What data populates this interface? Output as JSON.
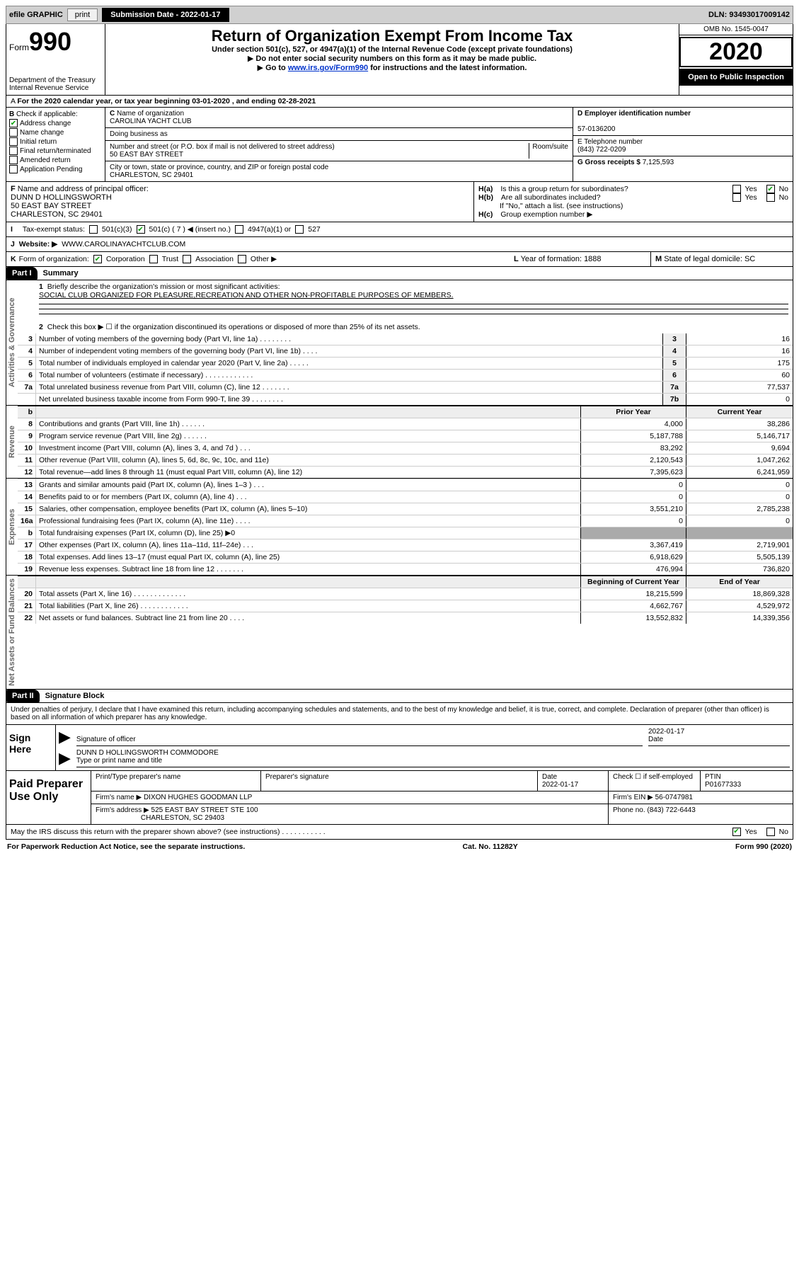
{
  "topbar": {
    "efile": "efile GRAPHIC",
    "print": "print",
    "submission": "Submission Date - 2022-01-17",
    "dln": "DLN: 93493017009142",
    "efile_bg": "#cfcfcf",
    "print_bg": "#f0f0f0",
    "sub_bg": "#000000",
    "sub_color": "#ffffff"
  },
  "header": {
    "form_word": "Form",
    "form_num": "990",
    "dept": "Department of the Treasury\nInternal Revenue Service",
    "title": "Return of Organization Exempt From Income Tax",
    "sub1": "Under section 501(c), 527, or 4947(a)(1) of the Internal Revenue Code (except private foundations)",
    "sub2": "Do not enter social security numbers on this form as it may be made public.",
    "sub3_pre": "Go to ",
    "sub3_link": "www.irs.gov/Form990",
    "sub3_post": " for instructions and the latest information.",
    "omb": "OMB No. 1545-0047",
    "year": "2020",
    "open": "Open to Public Inspection"
  },
  "lineA": "For the 2020 calendar year, or tax year beginning 03-01-2020     , and ending 02-28-2021",
  "checkB": {
    "label": "Check if applicable:",
    "address": "Address change",
    "name": "Name change",
    "initial": "Initial return",
    "final": "Final return/terminated",
    "amended": "Amended return",
    "pending": "Application Pending"
  },
  "org": {
    "c_label": "Name of organization",
    "c_name": "CAROLINA YACHT CLUB",
    "dba": "Doing business as",
    "addr_label": "Number and street (or P.O. box if mail is not delivered to street address)",
    "addr": "50 EAST BAY STREET",
    "room": "Room/suite",
    "city_label": "City or town, state or province, country, and ZIP or foreign postal code",
    "city": "CHARLESTON, SC  29401"
  },
  "right": {
    "d_label": "D Employer identification number",
    "d_val": "57-0136200",
    "e_label": "E Telephone number",
    "e_val": "(843) 722-0209",
    "g_label": "G Gross receipts $",
    "g_val": "7,125,593"
  },
  "officer": {
    "f_label": "Name and address of principal officer:",
    "name": "DUNN D HOLLINGSWORTH",
    "addr1": "50 EAST BAY STREET",
    "addr2": "CHARLESTON, SC  29401"
  },
  "h": {
    "ha": "Is this a group return for subordinates?",
    "hb": "Are all subordinates included?",
    "hb_note": "If \"No,\" attach a list. (see instructions)",
    "hc": "Group exemption number ▶",
    "yes": "Yes",
    "no": "No"
  },
  "status": {
    "label": "Tax-exempt status:",
    "s1": "501(c)(3)",
    "s2": "501(c) ( 7 ) ◀ (insert no.)",
    "s3": "4947(a)(1) or",
    "s4": "527"
  },
  "website": {
    "label": "Website: ▶",
    "val": "WWW.CAROLINAYACHTCLUB.COM"
  },
  "k": {
    "label": "Form of organization:",
    "o1": "Corporation",
    "o2": "Trust",
    "o3": "Association",
    "o4": "Other ▶"
  },
  "l": {
    "label": "Year of formation:",
    "val": "1888"
  },
  "m": {
    "label": "State of legal domicile:",
    "val": "SC"
  },
  "part1": {
    "tag": "Part I",
    "title": "Summary"
  },
  "summary": {
    "q1": "Briefly describe the organization's mission or most significant activities:",
    "mission": "SOCIAL CLUB ORGANIZED FOR PLEASURE,RECREATION AND OTHER NON-PROFITABLE PURPOSES OF MEMBERS.",
    "q2": "Check this box ▶ ☐  if the organization discontinued its operations or disposed of more than 25% of its net assets."
  },
  "gov": [
    {
      "n": "3",
      "t": "Number of voting members of the governing body (Part VI, line 1a)  .   .   .   .   .   .   .   .",
      "i": "3",
      "v": "16"
    },
    {
      "n": "4",
      "t": "Number of independent voting members of the governing body (Part VI, line 1b)  .   .   .   .",
      "i": "4",
      "v": "16"
    },
    {
      "n": "5",
      "t": "Total number of individuals employed in calendar year 2020 (Part V, line 2a)  .   .   .   .   .",
      "i": "5",
      "v": "175"
    },
    {
      "n": "6",
      "t": "Total number of volunteers (estimate if necessary)  .   .   .   .   .   .   .   .   .   .   .   .",
      "i": "6",
      "v": "60"
    },
    {
      "n": "7a",
      "t": "Total unrelated business revenue from Part VIII, column (C), line 12  .   .   .   .   .   .   .",
      "i": "7a",
      "v": "77,537"
    },
    {
      "n": "",
      "t": "Net unrelated business taxable income from Form 990-T, line 39  .   .   .   .   .   .   .   .",
      "i": "7b",
      "v": "0"
    }
  ],
  "colhdr": {
    "b": "b",
    "py": "Prior Year",
    "cy": "Current Year"
  },
  "revenue": [
    {
      "n": "8",
      "t": "Contributions and grants (Part VIII, line 1h)  .   .   .   .   .   .",
      "v1": "4,000",
      "v2": "38,286"
    },
    {
      "n": "9",
      "t": "Program service revenue (Part VIII, line 2g)  .   .   .   .   .   .",
      "v1": "5,187,788",
      "v2": "5,146,717"
    },
    {
      "n": "10",
      "t": "Investment income (Part VIII, column (A), lines 3, 4, and 7d )  .   .   .",
      "v1": "83,292",
      "v2": "9,694"
    },
    {
      "n": "11",
      "t": "Other revenue (Part VIII, column (A), lines 5, 6d, 8c, 9c, 10c, and 11e)",
      "v1": "2,120,543",
      "v2": "1,047,262"
    },
    {
      "n": "12",
      "t": "Total revenue—add lines 8 through 11 (must equal Part VIII, column (A), line 12)",
      "v1": "7,395,623",
      "v2": "6,241,959"
    }
  ],
  "expenses": [
    {
      "n": "13",
      "t": "Grants and similar amounts paid (Part IX, column (A), lines 1–3 )  .   .   .",
      "v1": "0",
      "v2": "0"
    },
    {
      "n": "14",
      "t": "Benefits paid to or for members (Part IX, column (A), line 4)  .   .   .",
      "v1": "0",
      "v2": "0"
    },
    {
      "n": "15",
      "t": "Salaries, other compensation, employee benefits (Part IX, column (A), lines 5–10)",
      "v1": "3,551,210",
      "v2": "2,785,238"
    },
    {
      "n": "16a",
      "t": "Professional fundraising fees (Part IX, column (A), line 11e)  .   .   .   .",
      "v1": "0",
      "v2": "0"
    },
    {
      "n": "b",
      "t": "Total fundraising expenses (Part IX, column (D), line 25) ▶0",
      "v1": "",
      "v2": "",
      "shade": true
    },
    {
      "n": "17",
      "t": "Other expenses (Part IX, column (A), lines 11a–11d, 11f–24e)  .   .   .",
      "v1": "3,367,419",
      "v2": "2,719,901"
    },
    {
      "n": "18",
      "t": "Total expenses. Add lines 13–17 (must equal Part IX, column (A), line 25)",
      "v1": "6,918,629",
      "v2": "5,505,139"
    },
    {
      "n": "19",
      "t": "Revenue less expenses. Subtract line 18 from line 12  .   .   .   .   .   .   .",
      "v1": "476,994",
      "v2": "736,820"
    }
  ],
  "nethdr": {
    "py": "Beginning of Current Year",
    "cy": "End of Year"
  },
  "net": [
    {
      "n": "20",
      "t": "Total assets (Part X, line 16)  .   .   .   .   .   .   .   .   .   .   .   .   .",
      "v1": "18,215,599",
      "v2": "18,869,328"
    },
    {
      "n": "21",
      "t": "Total liabilities (Part X, line 26)  .   .   .   .   .   .   .   .   .   .   .   .",
      "v1": "4,662,767",
      "v2": "4,529,972"
    },
    {
      "n": "22",
      "t": "Net assets or fund balances. Subtract line 21 from line 20  .   .   .   .",
      "v1": "13,552,832",
      "v2": "14,339,356"
    }
  ],
  "part2": {
    "tag": "Part II",
    "title": "Signature Block"
  },
  "perjury": "Under penalties of perjury, I declare that I have examined this return, including accompanying schedules and statements, and to the best of my knowledge and belief, it is true, correct, and complete. Declaration of preparer (other than officer) is based on all information of which preparer has any knowledge.",
  "sign": {
    "here": "Sign Here",
    "sig_of": "Signature of officer",
    "date": "Date",
    "date_val": "2022-01-17",
    "name": "DUNN D HOLLINGSWORTH  COMMODORE",
    "type": "Type or print name and title"
  },
  "prep": {
    "label": "Paid Preparer Use Only",
    "r1": {
      "c1": "Print/Type preparer's name",
      "c2": "Preparer's signature",
      "c3": "Date",
      "c3v": "2022-01-17",
      "c4": "Check ☐ if self-employed",
      "c5": "PTIN",
      "c5v": "P01677333"
    },
    "r2": {
      "c1": "Firm's name    ▶",
      "c1v": "DIXON HUGHES GOODMAN LLP",
      "c2": "Firm's EIN ▶",
      "c2v": "56-0747981"
    },
    "r3": {
      "c1": "Firm's address ▶",
      "c1v": "525 EAST BAY STREET STE 100",
      "c1v2": "CHARLESTON, SC  29403",
      "c2": "Phone no.",
      "c2v": "(843) 722-6443"
    }
  },
  "discuss": "May the IRS discuss this return with the preparer shown above? (see instructions)  .   .   .   .   .   .   .   .   .   .   .",
  "footer": {
    "l": "For Paperwork Reduction Act Notice, see the separate instructions.",
    "m": "Cat. No. 11282Y",
    "r": "Form 990 (2020)"
  },
  "vlabels": {
    "gov": "Activities & Governance",
    "rev": "Revenue",
    "exp": "Expenses",
    "net": "Net Assets or Fund Balances"
  }
}
